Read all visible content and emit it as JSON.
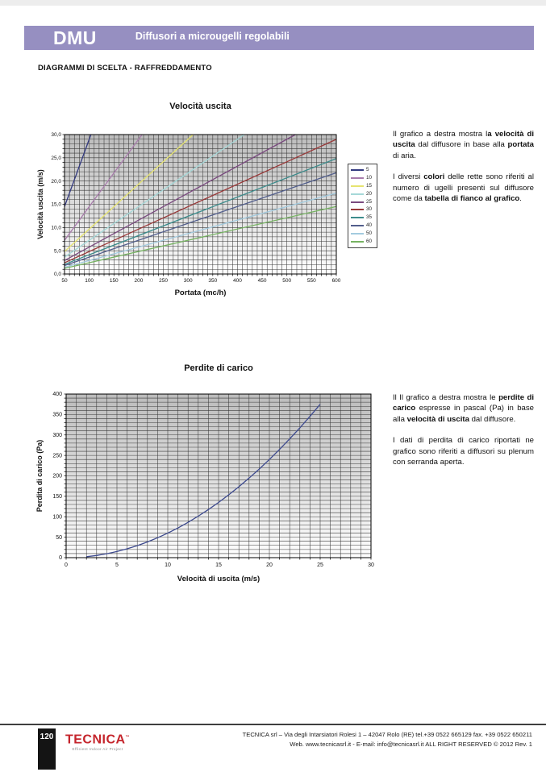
{
  "header": {
    "product_code": "DMU",
    "subtitle": "Diffusori a microugelli regolabili",
    "banner_color": "#968fc1"
  },
  "section_title": "DIAGRAMMI DI SCELTA - RAFFREDDAMENTO",
  "texts": {
    "chart1_description": [
      [
        {
          "t": "Il grafico a destra mostra l"
        },
        {
          "t": "a velocità di uscita",
          "b": true
        },
        {
          "t": " dal diffusore in base alla "
        },
        {
          "t": "portata",
          "b": true
        },
        {
          "t": " di aria."
        }
      ],
      [
        {
          "t": "I diversi "
        },
        {
          "t": "colori",
          "b": true
        },
        {
          "t": " delle rette sono riferiti al numero di ugelli presenti sul diffusore come da "
        },
        {
          "t": "tabella di fianco al grafico",
          "b": true
        },
        {
          "t": "."
        }
      ]
    ],
    "chart2_description": [
      [
        {
          "t": "Il Il grafico a destra mostra le "
        },
        {
          "t": "perdite di carico",
          "b": true
        },
        {
          "t": " espresse in pascal (Pa) in base alla "
        },
        {
          "t": "velocità di uscita",
          "b": true
        },
        {
          "t": " dal diffusore."
        }
      ],
      [
        {
          "t": "I dati di perdita di carico riportati ne grafico sono riferiti a diffusori su plenum con serranda aperta."
        }
      ]
    ]
  },
  "chart_data": [
    {
      "type": "line",
      "title": "Velocità uscita",
      "xlabel": "Portata (mc/h)",
      "ylabel": "Velocità uscita (m/s)",
      "xlim": [
        50,
        600
      ],
      "ylim": [
        0,
        30
      ],
      "x_ticks": [
        50,
        100,
        150,
        200,
        250,
        300,
        350,
        400,
        450,
        500,
        550,
        600
      ],
      "y_ticks": [
        0,
        5,
        10,
        15,
        20,
        25,
        30
      ],
      "y_tick_labels": [
        "0,0",
        "5,0",
        "10,0",
        "15,0",
        "20,0",
        "25,0",
        "30,0"
      ],
      "x_minor_step": 10,
      "y_minor_step": 1,
      "grid": true,
      "legend_position": "right",
      "legend_note": "numero di ugelli",
      "x": [
        50,
        100,
        150,
        200,
        250,
        300,
        350,
        400,
        450,
        500,
        550,
        600
      ],
      "series": [
        {
          "name": "5",
          "color": "#333a80",
          "slope": 0.29,
          "values": [
            14.5,
            29.0,
            null,
            null,
            null,
            null,
            null,
            null,
            null,
            null,
            null,
            null
          ]
        },
        {
          "name": "10",
          "color": "#a87cac",
          "slope": 0.145,
          "values": [
            7.3,
            14.5,
            21.8,
            29.0,
            null,
            null,
            null,
            null,
            null,
            null,
            null,
            null
          ]
        },
        {
          "name": "15",
          "color": "#e6e470",
          "slope": 0.0967,
          "values": [
            4.8,
            9.7,
            14.5,
            19.3,
            24.2,
            29.0,
            null,
            null,
            null,
            null,
            null,
            null
          ]
        },
        {
          "name": "20",
          "color": "#a5d8d8",
          "slope": 0.0725,
          "values": [
            3.6,
            7.3,
            10.9,
            14.5,
            18.1,
            21.8,
            25.4,
            29.0,
            null,
            null,
            null,
            null
          ]
        },
        {
          "name": "25",
          "color": "#7a4a7f",
          "slope": 0.058,
          "values": [
            2.9,
            5.8,
            8.7,
            11.6,
            14.5,
            17.4,
            20.3,
            23.2,
            26.1,
            29.0,
            null,
            null
          ]
        },
        {
          "name": "30",
          "color": "#993a3a",
          "slope": 0.0483,
          "values": [
            2.4,
            4.8,
            7.3,
            9.7,
            12.1,
            14.5,
            16.9,
            19.3,
            21.8,
            24.2,
            26.6,
            29.0
          ]
        },
        {
          "name": "35",
          "color": "#3d8c8c",
          "slope": 0.0414,
          "values": [
            2.1,
            4.1,
            6.2,
            8.3,
            10.4,
            12.4,
            14.5,
            16.6,
            18.6,
            20.7,
            22.8,
            24.9
          ]
        },
        {
          "name": "40",
          "color": "#525e8c",
          "slope": 0.0363,
          "values": [
            1.8,
            3.6,
            5.4,
            7.3,
            9.1,
            10.9,
            12.7,
            14.5,
            16.3,
            18.1,
            19.9,
            21.8
          ]
        },
        {
          "name": "50",
          "color": "#a3cbdf",
          "slope": 0.029,
          "values": [
            1.5,
            2.9,
            4.4,
            5.8,
            7.3,
            8.7,
            10.2,
            11.6,
            13.1,
            14.5,
            16.0,
            17.4
          ]
        },
        {
          "name": "60",
          "color": "#76b362",
          "slope": 0.0242,
          "values": [
            1.2,
            2.4,
            3.6,
            4.8,
            6.0,
            7.3,
            8.5,
            9.7,
            10.9,
            12.1,
            13.3,
            14.5
          ]
        }
      ]
    },
    {
      "type": "line",
      "title": "Perdite di carico",
      "xlabel": "Velocità di uscita (m/s)",
      "ylabel": "Perdita di carico (Pa)",
      "xlim": [
        0,
        30
      ],
      "ylim": [
        0,
        400
      ],
      "x_ticks": [
        0,
        5,
        10,
        15,
        20,
        25,
        30
      ],
      "y_ticks": [
        0,
        50,
        100,
        150,
        200,
        250,
        300,
        350,
        400
      ],
      "x_minor_step": 1,
      "y_minor_step": 10,
      "grid": true,
      "legend_position": "none",
      "series": [
        {
          "name": "Perdite di carico",
          "color": "#3d4a8f",
          "points": [
            [
              2,
              2.4
            ],
            [
              3,
              5.4
            ],
            [
              4,
              9.6
            ],
            [
              5,
              15
            ],
            [
              6,
              21.6
            ],
            [
              7,
              29.4
            ],
            [
              8,
              38.4
            ],
            [
              9,
              48.6
            ],
            [
              10,
              60
            ],
            [
              11,
              72.6
            ],
            [
              12,
              86.4
            ],
            [
              13,
              101.4
            ],
            [
              14,
              117.6
            ],
            [
              15,
              135
            ],
            [
              16,
              153.6
            ],
            [
              17,
              173.4
            ],
            [
              18,
              194.4
            ],
            [
              19,
              216.6
            ],
            [
              20,
              240
            ],
            [
              21,
              264.6
            ],
            [
              22,
              290.4
            ],
            [
              23,
              317.4
            ],
            [
              24,
              345.6
            ],
            [
              25,
              375
            ]
          ]
        }
      ]
    }
  ],
  "footer": {
    "page_number": "120",
    "logo_text": "TECNICA",
    "logo_tm": "™",
    "logo_tagline": "Efficient Indoor Air Project",
    "address_line": "TECNICA srl – Via degli Intarsiatori Rolesi 1 – 42047 Rolo (RE) tel.+39 0522 665129 fax. +39 0522 650211",
    "web_line": "Web. www.tecnicasrl.it  - E-mail: info@tecnicasrl.it   ALL RIGHT RESERVED  © 2012  Rev. 1"
  }
}
